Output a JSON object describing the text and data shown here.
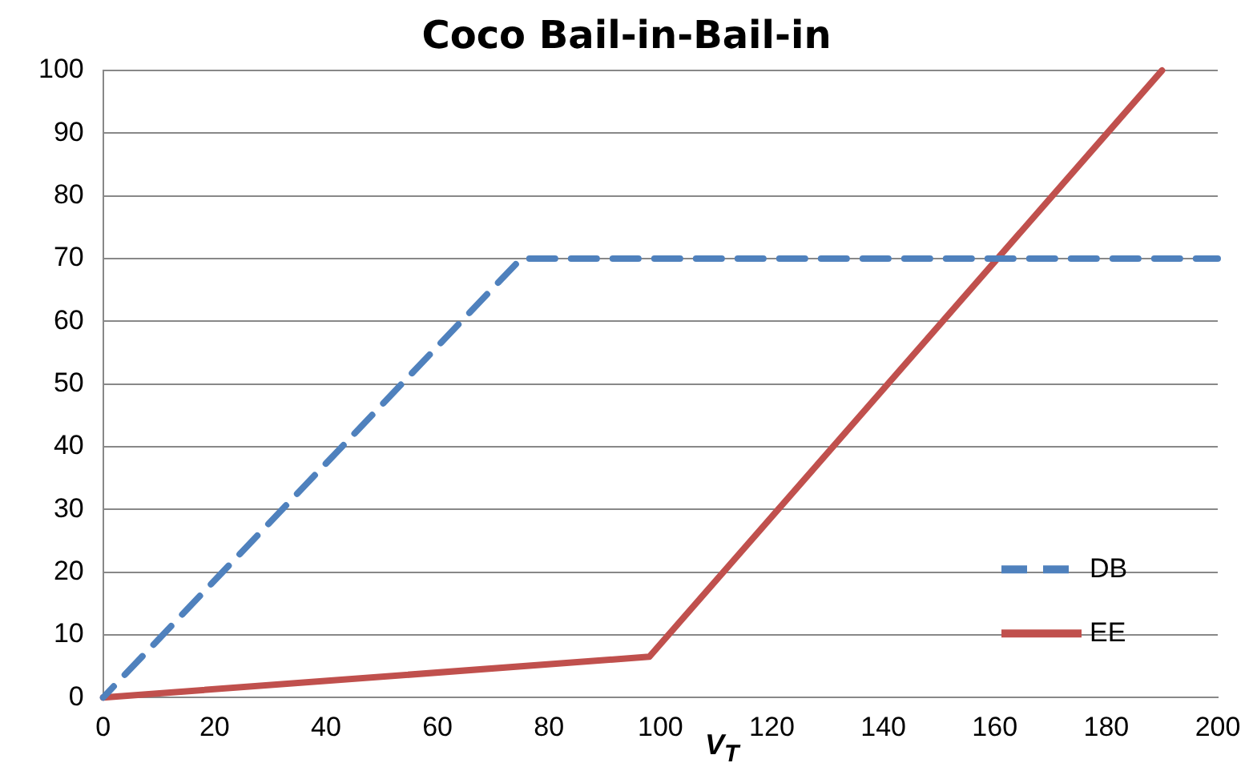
{
  "chart_data": {
    "type": "line",
    "title": "Coco Bail-in-Bail-in",
    "xlabel": "V$_{T}$",
    "series": [
      {
        "name": "DB",
        "color": "#4f81bd",
        "line_style": "dashed",
        "x": [
          0,
          75,
          200
        ],
        "values": [
          0,
          70,
          70
        ]
      },
      {
        "name": "EE",
        "color": "#c0504d",
        "line_style": "solid",
        "x": [
          0,
          98,
          190
        ],
        "values": [
          0,
          6.5,
          100
        ]
      }
    ],
    "xlim": [
      0,
      200
    ],
    "xticks": [
      0,
      20,
      40,
      60,
      80,
      100,
      120,
      140,
      160,
      180,
      200
    ],
    "ylim": [
      0,
      100
    ],
    "yticks": [
      0,
      10,
      20,
      30,
      40,
      50,
      60,
      70,
      80,
      90,
      100
    ],
    "grid": "y",
    "legend": "bottom right",
    "marker": "none"
  }
}
